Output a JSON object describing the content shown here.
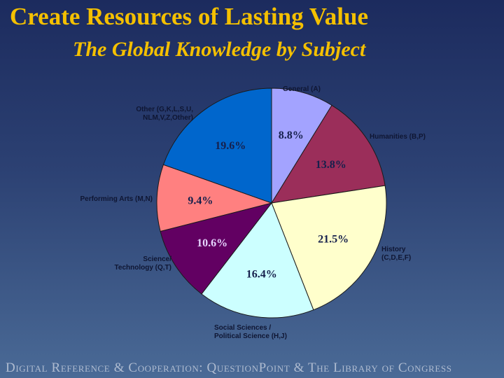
{
  "title": "Create Resources of Lasting Value",
  "subtitle": "The Global Knowledge by Subject",
  "footer": "Digital Reference & Cooperation: QuestionPoint & The Library of Congress",
  "chart_data": {
    "type": "pie",
    "start": "12 o'clock, clockwise",
    "slices": [
      {
        "label": [
          "General (A)"
        ],
        "value": 8.8,
        "value_label": "8.8%",
        "color": "#a3a3ff",
        "text_color": "#16204c"
      },
      {
        "label": [
          "Humanities (B,P)"
        ],
        "value": 13.8,
        "value_label": "13.8%",
        "color": "#9b2e5a",
        "text_color": "#16204c"
      },
      {
        "label": [
          "History",
          "(C,D,E,F)"
        ],
        "value": 21.5,
        "value_label": "21.5%",
        "color": "#ffffcc",
        "text_color": "#16204c"
      },
      {
        "label": [
          "Social Sciences /",
          "Political Science (H,J)"
        ],
        "value": 16.4,
        "value_label": "16.4%",
        "color": "#ccffff",
        "text_color": "#16204c"
      },
      {
        "label": [
          "Science/",
          "Technology (Q,T)"
        ],
        "value": 10.6,
        "value_label": "10.6%",
        "color": "#620062",
        "text_color": "#e6d6ff"
      },
      {
        "label": [
          "Performing Arts (M,N)"
        ],
        "value": 9.4,
        "value_label": "9.4%",
        "color": "#ff8080",
        "text_color": "#16204c"
      },
      {
        "label": [
          "Other (G,K,L,S,U,",
          "NLM,V,Z,Other)"
        ],
        "value": 19.6,
        "value_label": "19.6%",
        "color": "#0066cc",
        "text_color": "#16204c"
      }
    ]
  }
}
